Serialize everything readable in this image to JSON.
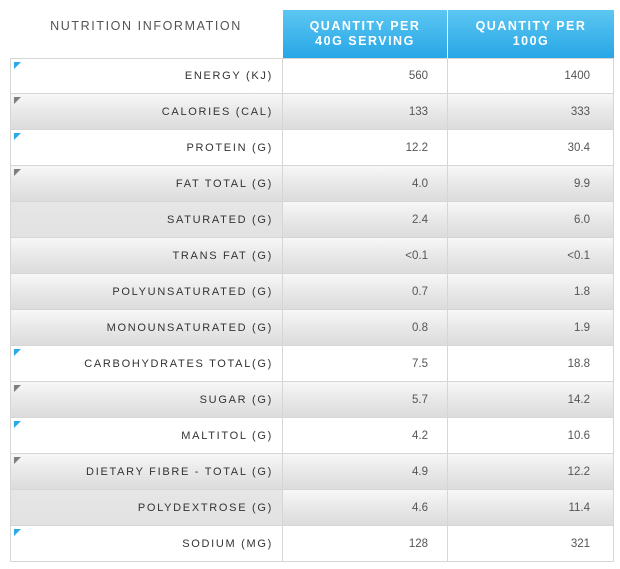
{
  "header": {
    "title": "NUTRITION INFORMATION",
    "col1_line1": "QUANTITY PER",
    "col1_line2": "40G SERVING",
    "col2_line1": "QUANTITY PER",
    "col2_line2": "100G"
  },
  "colors": {
    "accent": "#27a6e6",
    "marker_blue": "#2aa8e8",
    "marker_gray": "#7d7d7d"
  },
  "rows": [
    {
      "label": "ENERGY (KJ)",
      "per_serving": "560",
      "per_100g": "1400",
      "marker": "blue"
    },
    {
      "label": "CALORIES (CAL)",
      "per_serving": "133",
      "per_100g": "333",
      "marker": "gray"
    },
    {
      "label": "PROTEIN (G)",
      "per_serving": "12.2",
      "per_100g": "30.4",
      "marker": "blue"
    },
    {
      "label": "FAT TOTAL (G)",
      "per_serving": "4.0",
      "per_100g": "9.9",
      "marker": "gray"
    },
    {
      "label": "SATURATED (G)",
      "per_serving": "2.4",
      "per_100g": "6.0",
      "marker": "none"
    },
    {
      "label": "TRANS FAT (G)",
      "per_serving": "<0.1",
      "per_100g": "<0.1",
      "marker": "none"
    },
    {
      "label": "POLYUNSATURATED (G)",
      "per_serving": "0.7",
      "per_100g": "1.8",
      "marker": "none"
    },
    {
      "label": "MONOUNSATURATED (G)",
      "per_serving": "0.8",
      "per_100g": "1.9",
      "marker": "none"
    },
    {
      "label": "CARBOHYDRATES TOTAL(G)",
      "per_serving": "7.5",
      "per_100g": "18.8",
      "marker": "blue"
    },
    {
      "label": "SUGAR (G)",
      "per_serving": "5.7",
      "per_100g": "14.2",
      "marker": "gray"
    },
    {
      "label": "MALTITOL (G)",
      "per_serving": "4.2",
      "per_100g": "10.6",
      "marker": "blue"
    },
    {
      "label": "DIETARY FIBRE - TOTAL (G)",
      "per_serving": "4.9",
      "per_100g": "12.2",
      "marker": "gray"
    },
    {
      "label": "POLYDEXTROSE (G)",
      "per_serving": "4.6",
      "per_100g": "11.4",
      "marker": "none"
    },
    {
      "label": "SODIUM (MG)",
      "per_serving": "128",
      "per_100g": "321",
      "marker": "blue"
    }
  ]
}
